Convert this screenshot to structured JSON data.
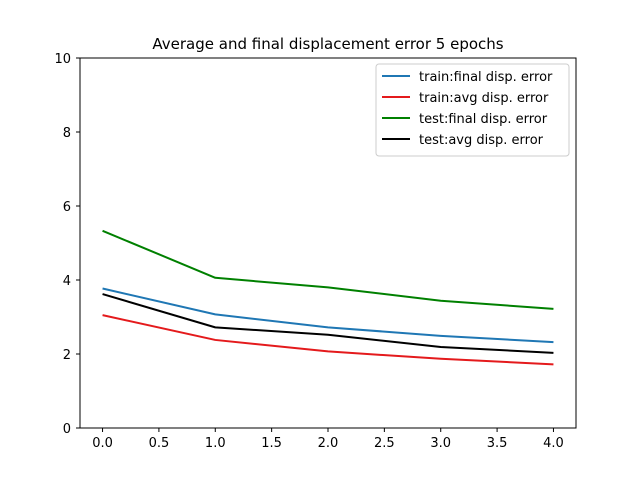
{
  "chart_data": {
    "type": "line",
    "title": "Average and final displacement error 5 epochs",
    "xlabel": "",
    "ylabel": "",
    "xlim": [
      -0.2,
      4.2
    ],
    "ylim": [
      0,
      10
    ],
    "xticks": [
      0.0,
      0.5,
      1.0,
      1.5,
      2.0,
      2.5,
      3.0,
      3.5,
      4.0
    ],
    "xtick_labels": [
      "0.0",
      "0.5",
      "1.0",
      "1.5",
      "2.0",
      "2.5",
      "3.0",
      "3.5",
      "4.0"
    ],
    "yticks": [
      0,
      2,
      4,
      6,
      8,
      10
    ],
    "ytick_labels": [
      "0",
      "2",
      "4",
      "6",
      "8",
      "10"
    ],
    "grid": false,
    "legend_position": "top-right",
    "x": [
      0,
      1,
      2,
      3,
      4
    ],
    "series": [
      {
        "name": "train:final disp. error",
        "color": "#1f77b4",
        "values": [
          3.77,
          3.07,
          2.72,
          2.49,
          2.32
        ]
      },
      {
        "name": "train:avg disp. error",
        "color": "#e41a1c",
        "values": [
          3.05,
          2.38,
          2.07,
          1.87,
          1.72
        ]
      },
      {
        "name": "test:final disp. error",
        "color": "#008000",
        "values": [
          5.33,
          4.06,
          3.8,
          3.44,
          3.22
        ]
      },
      {
        "name": "test:avg disp. error",
        "color": "#000000",
        "values": [
          3.62,
          2.72,
          2.52,
          2.19,
          2.03
        ]
      }
    ]
  }
}
